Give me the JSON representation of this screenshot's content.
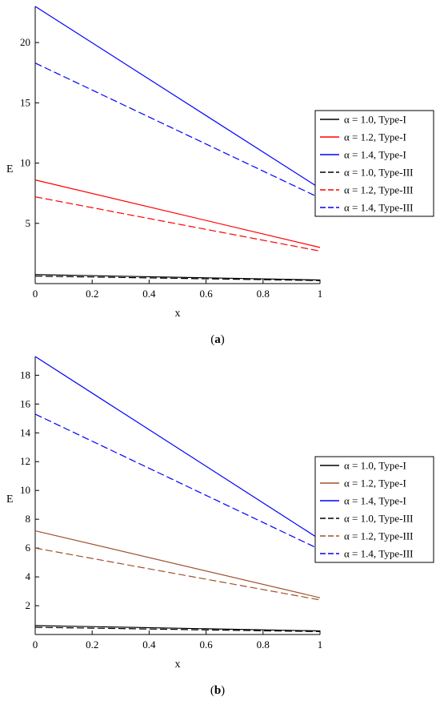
{
  "chart_data": [
    {
      "type": "line",
      "caption": "(a)",
      "xlabel": "x",
      "ylabel": "E",
      "xlim": [
        0,
        1
      ],
      "ylim": [
        0,
        23
      ],
      "xticks": [
        0,
        0.2,
        0.4,
        0.6,
        0.8,
        1
      ],
      "xtick_labels": [
        "0",
        "0.2",
        "0.4",
        "0.6",
        "0.8",
        "1"
      ],
      "yticks": [
        5,
        10,
        15,
        20
      ],
      "ytick_labels": [
        "5",
        "10",
        "15",
        "20"
      ],
      "grid": false,
      "legend_position": "right",
      "series": [
        {
          "name": "α = 1.0, Type-I",
          "color": "#000000",
          "dash": "solid",
          "x": [
            0,
            1
          ],
          "y": [
            0.75,
            0.3
          ]
        },
        {
          "name": "α = 1.2, Type-I",
          "color": "#ff0000",
          "dash": "solid",
          "x": [
            0,
            1
          ],
          "y": [
            8.6,
            3.0
          ]
        },
        {
          "name": "α = 1.4, Type-I",
          "color": "#0000ff",
          "dash": "solid",
          "x": [
            0,
            1
          ],
          "y": [
            23.0,
            7.9
          ]
        },
        {
          "name": "α = 1.0, Type-III",
          "color": "#000000",
          "dash": "dashed",
          "x": [
            0,
            1
          ],
          "y": [
            0.62,
            0.25
          ]
        },
        {
          "name": "α = 1.2, Type-III",
          "color": "#ff0000",
          "dash": "dashed",
          "x": [
            0,
            1
          ],
          "y": [
            7.2,
            2.7
          ]
        },
        {
          "name": "α = 1.4, Type-III",
          "color": "#0000ff",
          "dash": "dashed",
          "x": [
            0,
            1
          ],
          "y": [
            18.3,
            7.1
          ]
        }
      ]
    },
    {
      "type": "line",
      "caption": "(b)",
      "xlabel": "x",
      "ylabel": "E",
      "xlim": [
        0,
        1
      ],
      "ylim": [
        0,
        19.3
      ],
      "xticks": [
        0,
        0.2,
        0.4,
        0.6,
        0.8,
        1
      ],
      "xtick_labels": [
        "0",
        "0.2",
        "0.4",
        "0.6",
        "0.8",
        "1"
      ],
      "yticks": [
        2,
        4,
        6,
        8,
        10,
        12,
        14,
        16,
        18
      ],
      "ytick_labels": [
        "2",
        "4",
        "6",
        "8",
        "10",
        "12",
        "14",
        "16",
        "18"
      ],
      "grid": false,
      "legend_position": "right",
      "series": [
        {
          "name": "α = 1.0, Type-I",
          "color": "#000000",
          "dash": "solid",
          "x": [
            0,
            1
          ],
          "y": [
            0.62,
            0.25
          ]
        },
        {
          "name": "α = 1.2, Type-I",
          "color": "#a0522d",
          "dash": "solid",
          "x": [
            0,
            1
          ],
          "y": [
            7.2,
            2.55
          ]
        },
        {
          "name": "α = 1.4, Type-I",
          "color": "#0000ff",
          "dash": "solid",
          "x": [
            0,
            1
          ],
          "y": [
            19.3,
            6.6
          ]
        },
        {
          "name": "α = 1.0, Type-III",
          "color": "#000000",
          "dash": "dashed",
          "x": [
            0,
            1
          ],
          "y": [
            0.5,
            0.2
          ]
        },
        {
          "name": "α = 1.2, Type-III",
          "color": "#a0522d",
          "dash": "dashed",
          "x": [
            0,
            1
          ],
          "y": [
            6.0,
            2.4
          ]
        },
        {
          "name": "α = 1.4, Type-III",
          "color": "#0000ff",
          "dash": "dashed",
          "x": [
            0,
            1
          ],
          "y": [
            15.3,
            5.9
          ]
        }
      ]
    }
  ]
}
